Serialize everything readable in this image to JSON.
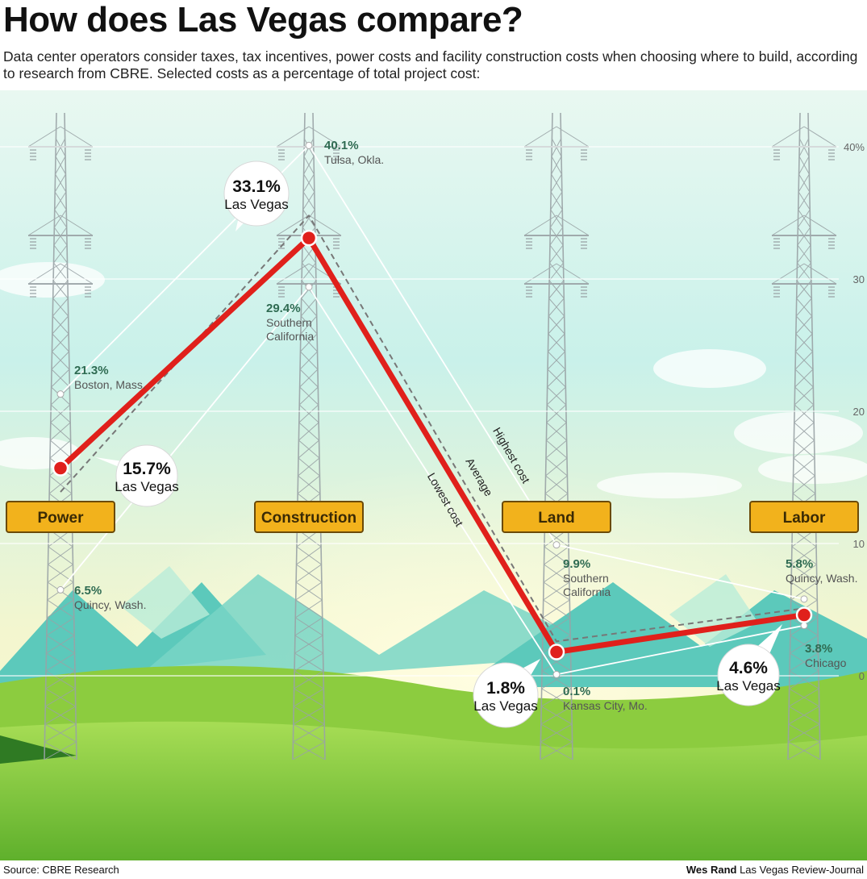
{
  "header": {
    "title": "How does Las Vegas compare?",
    "subtitle": "Data center operators consider taxes, tax incentives, power costs and facility construction costs when choosing where to build, according to research from CBRE. Selected costs as a percentage of total project cost:"
  },
  "footer": {
    "source": "Source: CBRE Research",
    "author": "Wes Rand",
    "publication": "Las Vegas Review-Journal"
  },
  "colors": {
    "las_vegas": "#e0201b",
    "average": "#777777",
    "range": "#ffffff",
    "sign": "#f2b21c",
    "sky_top": "#e6f7ef",
    "grass": "#7cc53a"
  },
  "chart_data": {
    "type": "line",
    "categories": [
      "Power",
      "Construction",
      "Land",
      "Labor"
    ],
    "ylim": [
      0,
      40
    ],
    "yticks": [
      {
        "value": 40,
        "label": "40%"
      },
      {
        "value": 30,
        "label": "30"
      },
      {
        "value": 20,
        "label": "20"
      },
      {
        "value": 10,
        "label": "10"
      },
      {
        "value": 0,
        "label": "0"
      }
    ],
    "series": [
      {
        "name": "Highest cost",
        "values": [
          21.3,
          40.1,
          9.9,
          5.8
        ]
      },
      {
        "name": "Average",
        "values": [
          13.9,
          34.8,
          2.6,
          5.1
        ]
      },
      {
        "name": "Lowest cost",
        "values": [
          6.5,
          29.4,
          0.1,
          3.8
        ]
      },
      {
        "name": "Las Vegas",
        "values": [
          15.7,
          33.1,
          1.8,
          4.6
        ]
      }
    ],
    "las_vegas_callouts": [
      {
        "value": "15.7%",
        "label": "Las Vegas"
      },
      {
        "value": "33.1%",
        "label": "Las Vegas"
      },
      {
        "value": "1.8%",
        "label": "Las Vegas"
      },
      {
        "value": "4.6%",
        "label": "Las Vegas"
      }
    ],
    "high_annotations": [
      {
        "value": "21.3%",
        "place": "Boston, Mass."
      },
      {
        "value": "40.1%",
        "place": "Tulsa, Okla."
      },
      {
        "value": "9.9%",
        "place": "Southern California"
      },
      {
        "value": "5.8%",
        "place": "Quincy, Wash."
      }
    ],
    "low_annotations": [
      {
        "value": "6.5%",
        "place": "Quincy, Wash."
      },
      {
        "value": "29.4%",
        "place": "Southern California"
      },
      {
        "value": "0.1%",
        "place": "Kansas City, Mo."
      },
      {
        "value": "3.8%",
        "place": "Chicago"
      }
    ]
  }
}
